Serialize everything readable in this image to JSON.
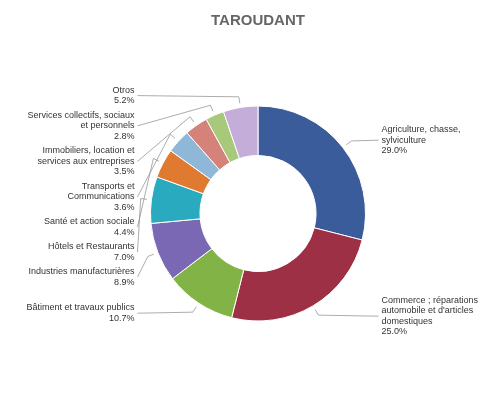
{
  "chart_data": {
    "type": "doughnut",
    "title": "TAROUDANT",
    "categories": [
      "Agriculture, chasse,\nsylviculture",
      "Commerce ; réparations\nautomobile et d'articles\ndomestiques",
      "Bâtiment et travaux publics",
      "Industries manufacturières",
      "Hôtels et Restaurants",
      "Santé et action sociale",
      "Transports et\nCommunications",
      "Immobiliers, location et\nservices aux entreprises",
      "Services collectifs, sociaux\net personnels",
      "Otros"
    ],
    "values": [
      29.0,
      25.0,
      10.7,
      8.9,
      7.0,
      4.4,
      3.6,
      3.5,
      2.8,
      5.2
    ],
    "value_labels": [
      "29.0%",
      "25.0%",
      "10.7%",
      "8.9%",
      "7.0%",
      "4.4%",
      "3.6%",
      "3.5%",
      "2.8%",
      "5.2%"
    ],
    "colors": [
      "#3B5C9A",
      "#9E3045",
      "#82B347",
      "#7B68B5",
      "#29AABF",
      "#E07A30",
      "#8FB8D8",
      "#D4827A",
      "#A8C87A",
      "#C4ADD8"
    ],
    "data_labels": true
  }
}
